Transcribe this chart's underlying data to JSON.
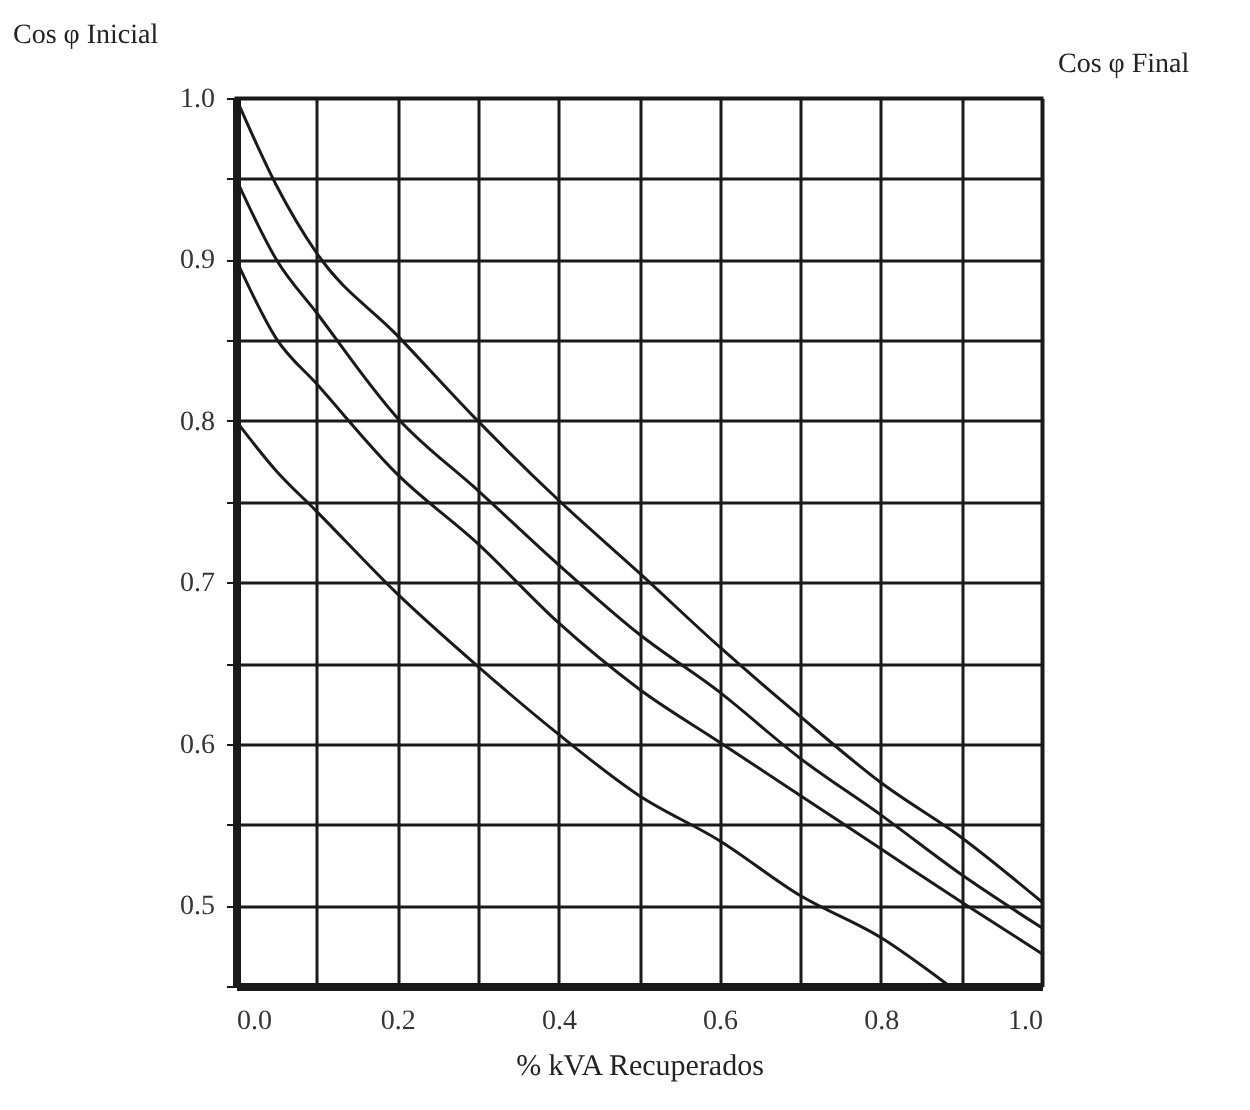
{
  "chart_data": {
    "type": "line",
    "ylabel": "Cos φ Inicial",
    "xlabel": "% kVA Recuperados",
    "annotations": [
      "Cos φ Final"
    ],
    "x": [
      0,
      0.05,
      0.1,
      0.2,
      0.3,
      0.4,
      0.5,
      0.6,
      0.7,
      0.8,
      0.9,
      1.0
    ],
    "series": [
      {
        "color": "#1a1a1a",
        "values": [
          1.0,
          0.946,
          0.904,
          0.853,
          0.8,
          0.751,
          0.706,
          0.66,
          0.617,
          0.576,
          0.542,
          0.502
        ]
      },
      {
        "color": "#1a1a1a",
        "values": [
          0.95,
          0.9,
          0.867,
          0.802,
          0.757,
          0.711,
          0.668,
          0.632,
          0.591,
          0.556,
          0.519,
          0.486
        ]
      },
      {
        "color": "#1a1a1a",
        "values": [
          0.9,
          0.851,
          0.823,
          0.767,
          0.724,
          0.675,
          0.634,
          0.601,
          0.568,
          0.535,
          0.502,
          0.47
        ]
      },
      {
        "color": "#1a1a1a",
        "x": [
          0,
          0.05,
          0.1,
          0.2,
          0.3,
          0.4,
          0.5,
          0.6,
          0.7,
          0.8,
          0.885
        ],
        "values": [
          0.8,
          0.769,
          0.744,
          0.693,
          0.648,
          0.606,
          0.568,
          0.54,
          0.506,
          0.48,
          0.45
        ]
      }
    ],
    "xlim": [
      0,
      1.0
    ],
    "ylim": [
      0.45,
      1.0
    ],
    "xticks": [
      {
        "value": 0,
        "label": "0.0"
      },
      {
        "value": 0.1,
        "label": null
      },
      0.2,
      {
        "value": 0.3,
        "label": null
      },
      0.4,
      {
        "value": 0.5,
        "label": null
      },
      0.6,
      {
        "value": 0.7,
        "label": null
      },
      0.8,
      {
        "value": 0.9,
        "label": null
      },
      {
        "value": 1.0,
        "label": "1.0"
      }
    ],
    "yticks": [
      {
        "value": 0.45,
        "label": null
      },
      0.5,
      {
        "value": 0.55,
        "label": null
      },
      0.6,
      {
        "value": 0.65,
        "label": null
      },
      0.7,
      {
        "value": 0.75,
        "label": null
      },
      0.8,
      {
        "value": 0.85,
        "label": null
      },
      0.9,
      {
        "value": 0.95,
        "label": null
      },
      {
        "value": 1.0,
        "label": "1.0"
      }
    ],
    "grid": true,
    "legend": false,
    "marker": "none",
    "line_style": "solid"
  }
}
